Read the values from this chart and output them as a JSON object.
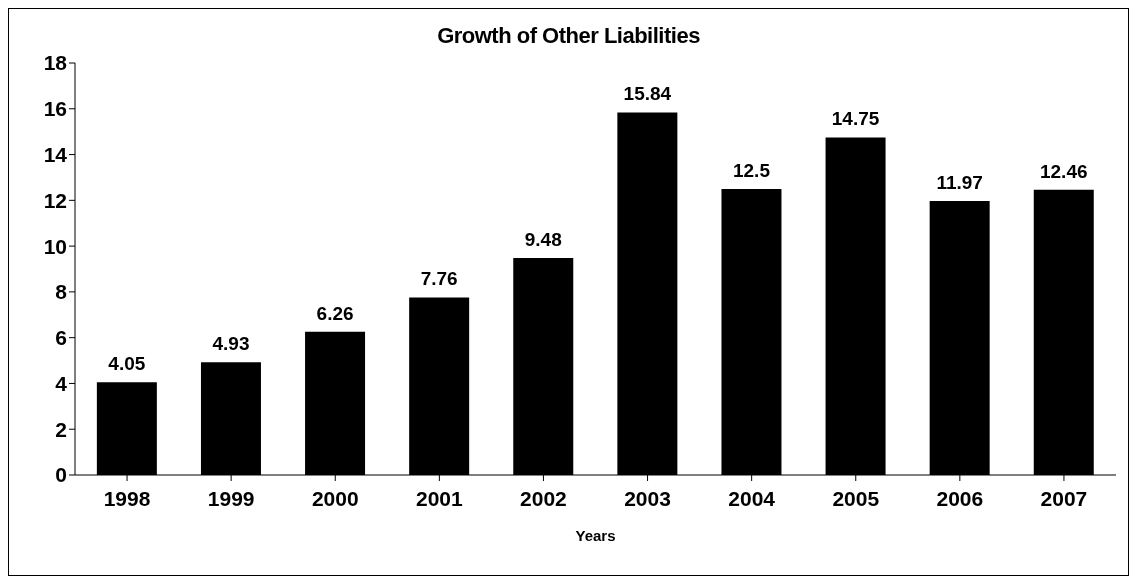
{
  "chart_data": {
    "type": "bar",
    "title": "Growth of Other Liabilities",
    "xlabel": "Years",
    "categories": [
      "1998",
      "1999",
      "2000",
      "2001",
      "2002",
      "2003",
      "2004",
      "2005",
      "2006",
      "2007"
    ],
    "values": [
      4.05,
      4.93,
      6.26,
      7.76,
      9.48,
      15.84,
      12.5,
      14.75,
      11.97,
      12.46
    ],
    "color": "#000000",
    "ylim": [
      0,
      18
    ],
    "yticks": [
      0,
      2,
      4,
      6,
      8,
      10,
      12,
      14,
      16,
      18
    ],
    "grid": false,
    "legend": false,
    "data_labels": true
  }
}
